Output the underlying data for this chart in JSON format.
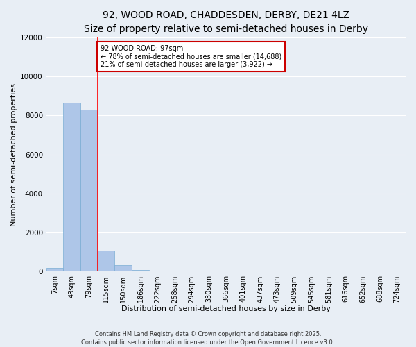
{
  "title_line1": "92, WOOD ROAD, CHADDESDEN, DERBY, DE21 4LZ",
  "title_line2": "Size of property relative to semi-detached houses in Derby",
  "xlabel": "Distribution of semi-detached houses by size in Derby",
  "ylabel": "Number of semi-detached properties",
  "footer_line1": "Contains HM Land Registry data © Crown copyright and database right 2025.",
  "footer_line2": "Contains public sector information licensed under the Open Government Licence v3.0.",
  "categories": [
    "7sqm",
    "43sqm",
    "79sqm",
    "115sqm",
    "150sqm",
    "186sqm",
    "222sqm",
    "258sqm",
    "294sqm",
    "330sqm",
    "366sqm",
    "401sqm",
    "437sqm",
    "473sqm",
    "509sqm",
    "545sqm",
    "581sqm",
    "616sqm",
    "652sqm",
    "688sqm",
    "724sqm"
  ],
  "values": [
    200,
    8650,
    8300,
    1100,
    350,
    100,
    70,
    0,
    0,
    0,
    0,
    0,
    0,
    0,
    0,
    0,
    0,
    0,
    0,
    0,
    0
  ],
  "bar_color": "#aec6e8",
  "bar_edge_color": "#7aadd4",
  "property_line_x": 2.5,
  "property_label": "92 WOOD ROAD: 97sqm",
  "pct_smaller": 78,
  "count_smaller": 14688,
  "pct_larger": 21,
  "count_larger": 3922,
  "annotation_box_color": "#cc0000",
  "ylim": [
    0,
    12000
  ],
  "yticks": [
    0,
    2000,
    4000,
    6000,
    8000,
    10000,
    12000
  ],
  "background_color": "#e8eef5",
  "grid_color": "#ffffff",
  "title_fontsize": 10,
  "subtitle_fontsize": 9,
  "axis_label_fontsize": 8,
  "tick_fontsize": 7
}
